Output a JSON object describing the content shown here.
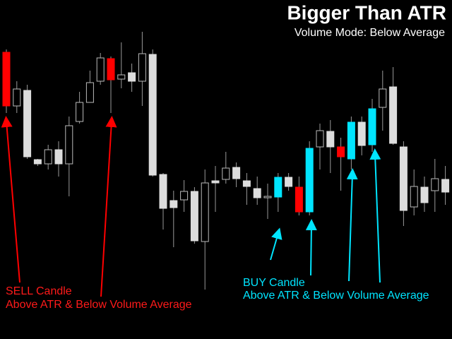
{
  "chart_data": {
    "type": "candlestick",
    "title": "Bigger Than ATR",
    "subtitle": "Volume Mode:  Below Average",
    "annotations": {
      "sell": [
        "SELL Candle",
        "Above ATR & Below Volume Average"
      ],
      "buy": [
        "BUY Candle",
        "Above ATR & Below Volume Average"
      ]
    },
    "ylim": [
      0,
      480
    ],
    "series": {
      "high": [
        410,
        365,
        360,
        255,
        275,
        280,
        315,
        350,
        380,
        405,
        400,
        420,
        390,
        435,
        410,
        235,
        210,
        225,
        215,
        240,
        245,
        265,
        250,
        235,
        230,
        220,
        235,
        235,
        230,
        280,
        305,
        310,
        285,
        315,
        315,
        340,
        380,
        385,
        280,
        240,
        230,
        255,
        245
      ],
      "low": [
        320,
        320,
        255,
        245,
        240,
        230,
        202,
        305,
        335,
        360,
        320,
        355,
        350,
        330,
        230,
        155,
        130,
        180,
        135,
        70,
        180,
        220,
        215,
        190,
        190,
        170,
        180,
        210,
        175,
        175,
        240,
        235,
        210,
        240,
        260,
        265,
        295,
        275,
        160,
        175,
        180,
        180,
        190
      ],
      "close": [
        406,
        354,
        352,
        254,
        268,
        268,
        302,
        335,
        363,
        398,
        397,
        374,
        377,
        404,
        403,
        233,
        196,
        209,
        209,
        221,
        224,
        242,
        243,
        224,
        213,
        202,
        229,
        229,
        215,
        270,
        295,
        294,
        272,
        307,
        307,
        326,
        354,
        357,
        272,
        216,
        215,
        227,
        226
      ],
      "open": [
        330,
        330,
        258,
        248,
        248,
        248,
        248,
        308,
        335,
        365,
        367,
        368,
        365,
        365,
        232,
        185,
        186,
        197,
        139,
        138,
        221,
        226,
        227,
        216,
        200,
        200,
        201,
        216,
        180,
        180,
        272,
        272,
        258,
        255,
        274,
        275,
        328,
        277,
        182,
        187,
        193,
        210,
        208
      ],
      "colors": [
        "#ff0000",
        "#000000",
        "#dddddd",
        "#dddddd",
        "#000000",
        "#dddddd",
        "#000000",
        "#000000",
        "#000000",
        "#000000",
        "#ff0000",
        "#000000",
        "#dddddd",
        "#000000",
        "#dddddd",
        "#dddddd",
        "#dddddd",
        "#000000",
        "#dddddd",
        "#000000",
        "#dddddd",
        "#000000",
        "#dddddd",
        "#dddddd",
        "#dddddd",
        "#000000",
        "#00e5ff",
        "#dddddd",
        "#ff0000",
        "#00e5ff",
        "#000000",
        "#dddddd",
        "#ff0000",
        "#00e5ff",
        "#dddddd",
        "#00e5ff",
        "#000000",
        "#dddddd",
        "#dddddd",
        "#000000",
        "#dddddd",
        "#000000",
        "#dddddd"
      ]
    }
  }
}
